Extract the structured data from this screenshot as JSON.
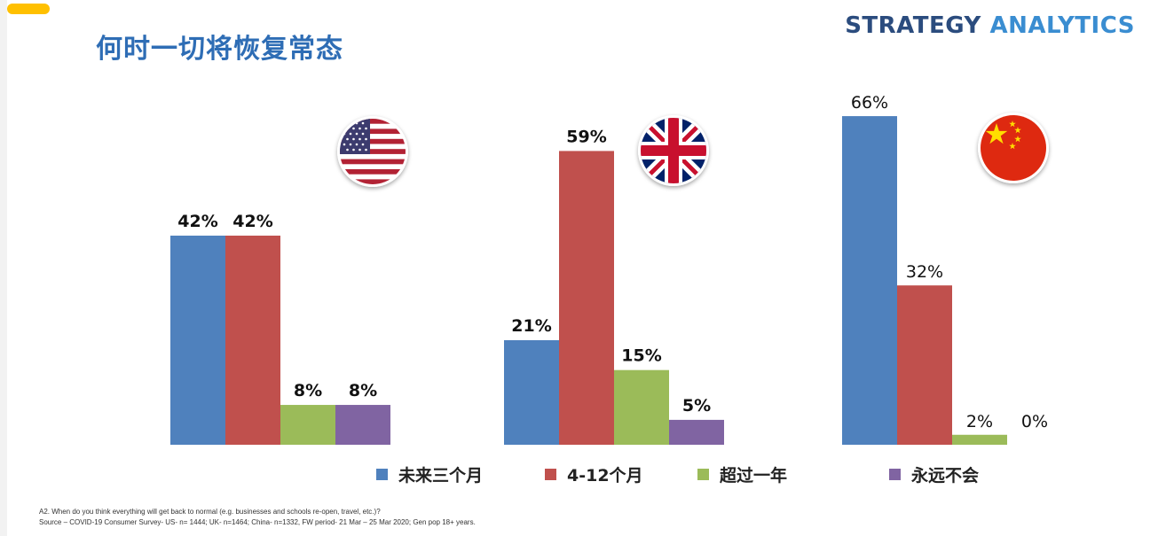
{
  "slide": {
    "title": "何时一切将恢复常态",
    "brand_part1": "STRATEGY",
    "brand_part2": "ANALYTICS"
  },
  "colors": {
    "accent_tab": "#ffc000",
    "title": "#2e6db5",
    "brand_dark": "#2b4c7e",
    "brand_light": "#3a8dd1"
  },
  "flags": [
    {
      "icon": "us-flag-icon"
    },
    {
      "icon": "uk-flag-icon"
    },
    {
      "icon": "china-flag-icon"
    }
  ],
  "chart_data": {
    "type": "bar",
    "ylim": [
      0,
      70
    ],
    "series": [
      {
        "name": "未来三个月",
        "color": "#4f81bd"
      },
      {
        "name": "4-12个月",
        "color": "#c0504d"
      },
      {
        "name": "超过一年",
        "color": "#9bbb59"
      },
      {
        "name": "永远不会",
        "color": "#8064a2"
      }
    ],
    "groups": [
      {
        "values": [
          42,
          42,
          8,
          8
        ],
        "labels": [
          "42%",
          "42%",
          "8%",
          "8%"
        ],
        "bold": true
      },
      {
        "values": [
          21,
          59,
          15,
          5
        ],
        "labels": [
          "21%",
          "59%",
          "15%",
          "5%"
        ],
        "bold": true
      },
      {
        "values": [
          66,
          32,
          2,
          0
        ],
        "labels": [
          "66%",
          "32%",
          "2%",
          "0%"
        ],
        "bold": false
      }
    ]
  },
  "legend": [
    {
      "label": "未来三个月",
      "color": "#4f81bd"
    },
    {
      "label": "4-12个月",
      "color": "#c0504d"
    },
    {
      "label": "超过一年",
      "color": "#9bbb59"
    },
    {
      "label": "永远不会",
      "color": "#8064a2"
    }
  ],
  "footnotes": {
    "question": "A2. When do you think everything will get back to normal (e.g. businesses and schools re-open, travel, etc.)?",
    "source": "Source – COVID-19 Consumer Survey- US- n= 1444; UK- n=1464; China- n=1332, FW period- 21 Mar – 25 Mar 2020; Gen pop 18+  years."
  }
}
